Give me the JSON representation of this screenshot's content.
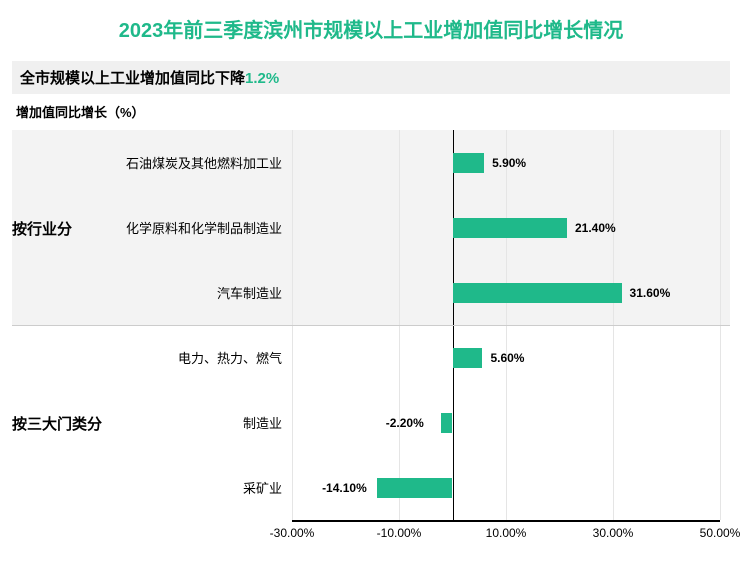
{
  "title": "2023年前三季度滨州市规模以上工业增加值同比增长情况",
  "title_color": "#1fb98a",
  "title_fontsize": 20,
  "subtitle_prefix": "全市规模以上工业增加值同比下降",
  "subtitle_value": "1.2%",
  "subtitle_bg": "#f0f0f0",
  "subtitle_value_color": "#1fb98a",
  "subtitle_fontsize": 15,
  "axis_title": "增加值同比增长（%）",
  "chart": {
    "type": "bar-horizontal",
    "bar_color": "#1fb98a",
    "grid_color": "#e5e5e5",
    "shade_color": "#f3f3f3",
    "label_color": "#000000",
    "xlim": [
      -30,
      50
    ],
    "xtick_step": 20,
    "xticks": [
      "-30.00%",
      "-10.00%",
      "10.00%",
      "30.00%",
      "50.00%"
    ],
    "groups": [
      {
        "label": "按行业分",
        "span": [
          0,
          3
        ]
      },
      {
        "label": "按三大门类分",
        "span": [
          3,
          6
        ]
      }
    ],
    "rows": [
      {
        "category": "石油煤炭及其他燃料加工业",
        "value": 5.9,
        "label": "5.90%"
      },
      {
        "category": "化学原料和化学制品制造业",
        "value": 21.4,
        "label": "21.40%"
      },
      {
        "category": "汽车制造业",
        "value": 31.6,
        "label": "31.60%"
      },
      {
        "category": "电力、热力、燃气",
        "value": 5.6,
        "label": "5.60%"
      },
      {
        "category": "制造业",
        "value": -2.2,
        "label": "-2.20%"
      },
      {
        "category": "采矿业",
        "value": -14.1,
        "label": "-14.10%"
      }
    ]
  }
}
